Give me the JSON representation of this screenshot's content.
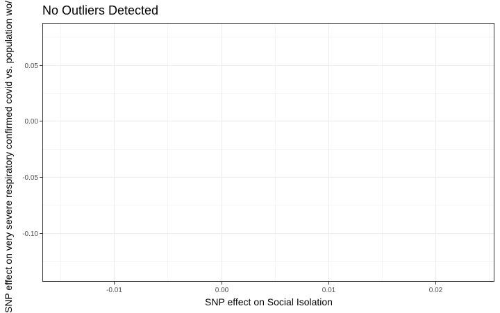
{
  "chart_data": {
    "type": "scatter",
    "title": "No Outliers Detected",
    "xlabel": "SNP effect on Social Isolation",
    "ylabel": "SNP effect on very severe respiratory confirmed covid vs. population wo/ U",
    "xlim": [
      -0.0167,
      0.0255
    ],
    "ylim": [
      -0.1435,
      0.0875
    ],
    "x_ticks": [
      -0.01,
      0.0,
      0.01,
      0.02
    ],
    "x_tick_labels": [
      "-0.01",
      "0.00",
      "0.01",
      "0.02"
    ],
    "y_ticks": [
      0.05,
      0.0,
      -0.05,
      -0.1
    ],
    "y_tick_labels": [
      "0.05",
      "0.00",
      "-0.05",
      "-0.10"
    ],
    "grid": true,
    "series": [
      {
        "points": []
      }
    ]
  },
  "colors": {
    "panel_border": "#333333",
    "grid_major": "#ebebeb",
    "grid_minor": "#f5f5f5",
    "tick_label": "#4d4d4d"
  }
}
